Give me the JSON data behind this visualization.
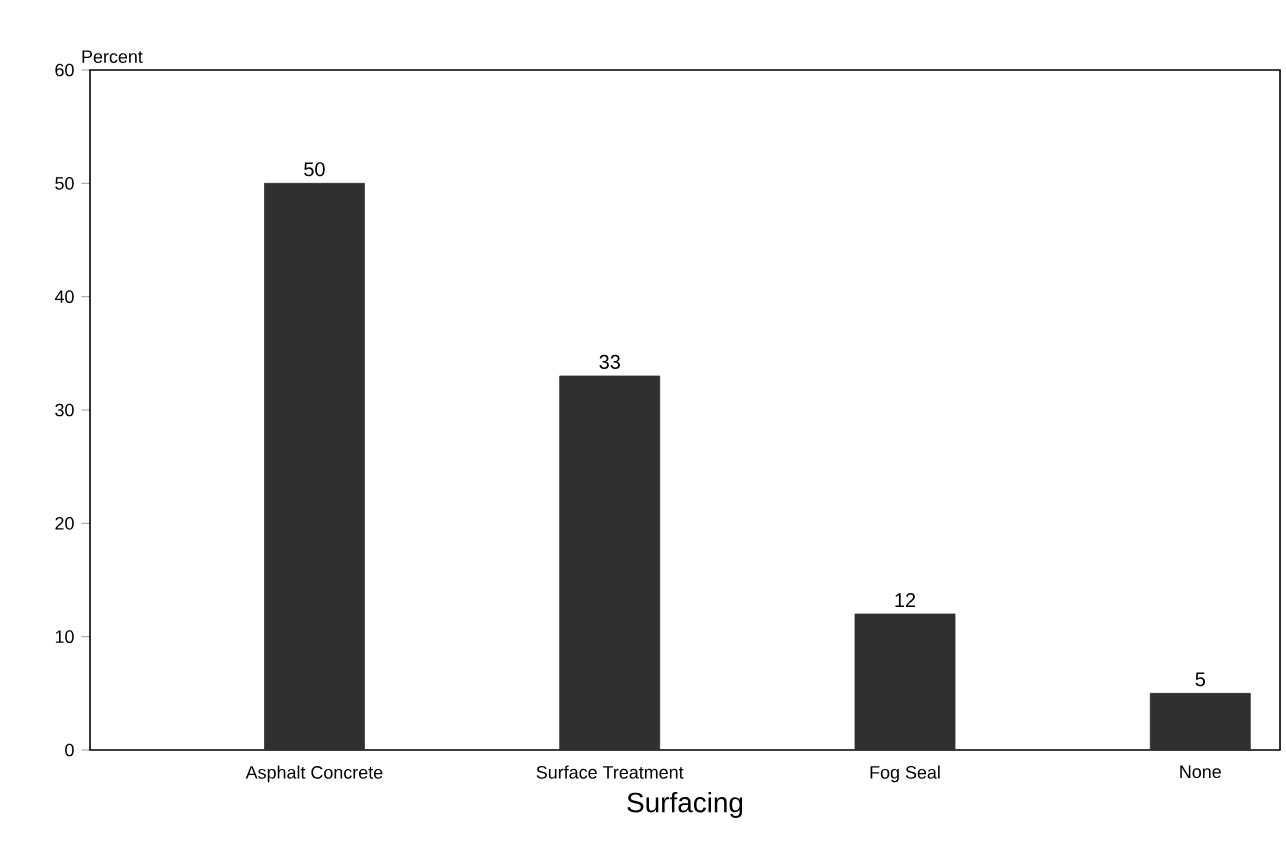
{
  "chart_data": {
    "type": "bar",
    "xlabel": "Surfacing",
    "ylabel": "Percent",
    "categories": [
      "Asphalt Concrete",
      "Surface Treatment",
      "Fog Seal",
      "None"
    ],
    "values": [
      50,
      33,
      12,
      5
    ],
    "color": "#303030",
    "ylim": [
      0,
      60
    ],
    "yticks": [
      0,
      10,
      20,
      30,
      40,
      50,
      60
    ],
    "data_labels": true,
    "grid": false
  }
}
